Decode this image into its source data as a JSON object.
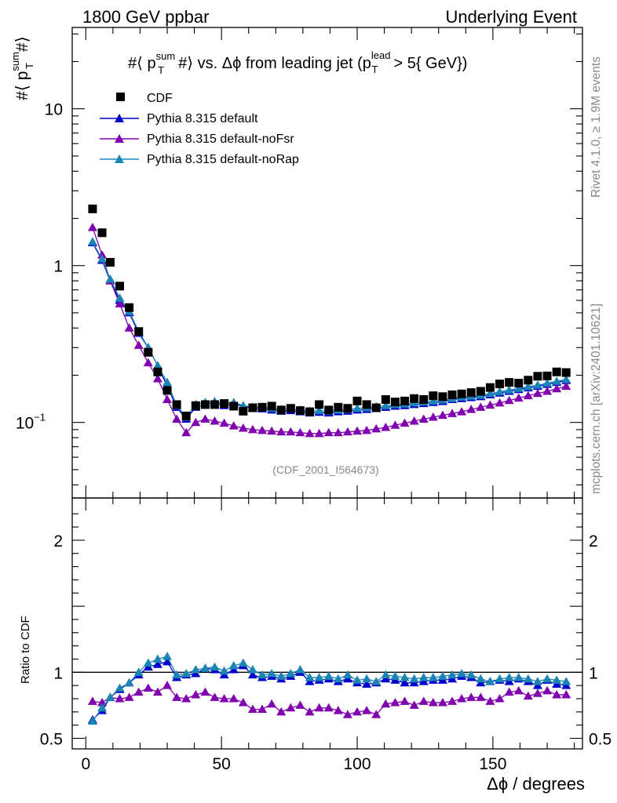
{
  "header": {
    "left": "1800 GeV ppbar",
    "right": "Underlying Event"
  },
  "side_text": {
    "rivet": "Rivet 4.1.0, ≥ 1.9M events",
    "mcplots": "mcplots.cern.ch [arXiv:2401.10621]"
  },
  "watermark": "(CDF_2001_I564673)",
  "chart_data": [
    {
      "type": "scatter",
      "panel": "main",
      "title": "#⟨ p_T^sum #⟩ vs. Δϕ from leading jet  (p_T^lead > 5{ GeV})",
      "title_parts": {
        "a": "#⟨ p",
        "sup1": "sum",
        "sub1": "T",
        "b": "#⟩ vs. Δϕ from leading jet  (p",
        "sup2": "lead",
        "sub2": "T",
        "c": "> 5{ GeV})"
      },
      "ylabel": "#⟨ p_T^sum #⟩",
      "ylabel_parts": {
        "a": "#⟨ p",
        "sup": "sum",
        "sub": "T",
        "b": "#⟩"
      },
      "yscale": "log",
      "ylim": [
        0.033,
        33
      ],
      "xlim": [
        -5,
        183
      ],
      "yticks": [
        {
          "value": 10,
          "label": "10"
        },
        {
          "value": 1,
          "label": "1"
        },
        {
          "value": 0.1,
          "label": "10",
          "exp": "−1"
        }
      ],
      "legend_position": "top-left",
      "x": [
        2.5,
        6.0,
        9.0,
        12.5,
        16.0,
        19.5,
        23.0,
        26.5,
        30.0,
        33.5,
        37.0,
        40.5,
        44.0,
        47.5,
        51.0,
        54.5,
        58.0,
        61.5,
        65.0,
        68.5,
        72.0,
        75.5,
        79.0,
        82.5,
        86.0,
        89.5,
        93.0,
        96.5,
        100.0,
        103.5,
        107.0,
        110.5,
        114.0,
        117.5,
        121.0,
        124.5,
        128.0,
        131.5,
        135.0,
        138.5,
        142.0,
        145.5,
        149.0,
        152.5,
        156.0,
        159.5,
        163.0,
        166.5,
        170.0,
        173.5,
        177.0
      ],
      "series": [
        {
          "name": "CDF",
          "color": "#000000",
          "marker": "square",
          "values": [
            2.3,
            1.62,
            1.05,
            0.74,
            0.54,
            0.38,
            0.28,
            0.21,
            0.16,
            0.13,
            0.11,
            0.128,
            0.13,
            0.13,
            0.132,
            0.127,
            0.118,
            0.124,
            0.125,
            0.127,
            0.12,
            0.123,
            0.119,
            0.117,
            0.13,
            0.12,
            0.125,
            0.123,
            0.137,
            0.13,
            0.124,
            0.14,
            0.135,
            0.137,
            0.142,
            0.14,
            0.148,
            0.146,
            0.15,
            0.152,
            0.155,
            0.158,
            0.167,
            0.176,
            0.18,
            0.178,
            0.186,
            0.197,
            0.198,
            0.21,
            0.208
          ]
        },
        {
          "name": "Pythia 8.315 default",
          "color": "#0000cc",
          "marker": "triangle",
          "values": [
            1.4,
            1.08,
            0.8,
            0.6,
            0.5,
            0.37,
            0.3,
            0.23,
            0.17,
            0.125,
            0.105,
            0.125,
            0.13,
            0.134,
            0.128,
            0.131,
            0.127,
            0.123,
            0.122,
            0.12,
            0.118,
            0.119,
            0.117,
            0.115,
            0.116,
            0.115,
            0.117,
            0.118,
            0.12,
            0.121,
            0.123,
            0.125,
            0.127,
            0.128,
            0.13,
            0.132,
            0.134,
            0.136,
            0.14,
            0.142,
            0.144,
            0.146,
            0.15,
            0.154,
            0.158,
            0.162,
            0.166,
            0.17,
            0.175,
            0.18,
            0.185
          ]
        },
        {
          "name": "Pythia 8.315 default-noFsr",
          "color": "#8000b0",
          "marker": "triangle",
          "values": [
            1.75,
            1.17,
            0.8,
            0.57,
            0.4,
            0.31,
            0.24,
            0.19,
            0.14,
            0.105,
            0.086,
            0.1,
            0.105,
            0.102,
            0.099,
            0.095,
            0.092,
            0.09,
            0.089,
            0.088,
            0.087,
            0.087,
            0.086,
            0.085,
            0.085,
            0.086,
            0.086,
            0.087,
            0.088,
            0.089,
            0.091,
            0.093,
            0.096,
            0.099,
            0.102,
            0.105,
            0.108,
            0.111,
            0.114,
            0.117,
            0.121,
            0.125,
            0.129,
            0.133,
            0.138,
            0.143,
            0.148,
            0.153,
            0.158,
            0.164,
            0.17
          ]
        },
        {
          "name": "Pythia 8.315 default-noRap",
          "color": "#1a85b5",
          "marker": "triangle",
          "values": [
            1.42,
            1.1,
            0.82,
            0.62,
            0.51,
            0.38,
            0.3,
            0.23,
            0.18,
            0.128,
            0.108,
            0.13,
            0.134,
            0.136,
            0.132,
            0.134,
            0.128,
            0.125,
            0.125,
            0.123,
            0.121,
            0.122,
            0.12,
            0.118,
            0.119,
            0.118,
            0.12,
            0.121,
            0.123,
            0.124,
            0.126,
            0.128,
            0.13,
            0.131,
            0.133,
            0.135,
            0.137,
            0.139,
            0.142,
            0.145,
            0.147,
            0.149,
            0.153,
            0.157,
            0.161,
            0.165,
            0.169,
            0.173,
            0.178,
            0.183,
            0.188
          ]
        }
      ]
    },
    {
      "type": "line",
      "panel": "ratio",
      "ylabel": "Ratio to CDF",
      "xlabel": "Δϕ / degrees",
      "xlim": [
        -5,
        183
      ],
      "ylim": [
        0.42,
        2.32
      ],
      "reference_line": 1,
      "xticks": [
        {
          "value": 0,
          "label": "0"
        },
        {
          "value": 50,
          "label": "50"
        },
        {
          "value": 100,
          "label": "100"
        },
        {
          "value": 150,
          "label": "150"
        }
      ],
      "yticks": [
        {
          "value": 0.5,
          "label": "0.5"
        },
        {
          "value": 1,
          "label": "1"
        },
        {
          "value": 2,
          "label": "2"
        }
      ],
      "x": [
        2.5,
        6.0,
        9.0,
        12.5,
        16.0,
        19.5,
        23.0,
        26.5,
        30.0,
        33.5,
        37.0,
        40.5,
        44.0,
        47.5,
        51.0,
        54.5,
        58.0,
        61.5,
        65.0,
        68.5,
        72.0,
        75.5,
        79.0,
        82.5,
        86.0,
        89.5,
        93.0,
        96.5,
        100.0,
        103.5,
        107.0,
        110.5,
        114.0,
        117.5,
        121.0,
        124.5,
        128.0,
        131.5,
        135.0,
        138.5,
        142.0,
        145.5,
        149.0,
        152.5,
        156.0,
        159.5,
        163.0,
        166.5,
        170.0,
        173.5,
        177.0
      ],
      "series": [
        {
          "name": "Pythia 8.315 default",
          "color": "#0000cc",
          "values": [
            0.64,
            0.71,
            0.81,
            0.87,
            0.92,
            0.98,
            1.04,
            1.06,
            1.08,
            0.96,
            0.98,
            0.99,
            1.03,
            1.02,
            0.98,
            1.02,
            1.05,
            0.98,
            0.96,
            0.97,
            0.95,
            0.97,
            1.0,
            0.93,
            0.94,
            0.95,
            0.93,
            0.95,
            0.92,
            0.91,
            0.92,
            0.95,
            0.94,
            0.92,
            0.92,
            0.93,
            0.94,
            0.94,
            0.95,
            0.97,
            0.96,
            0.92,
            0.93,
            0.94,
            0.93,
            0.95,
            0.93,
            0.9,
            0.94,
            0.91,
            0.9
          ]
        },
        {
          "name": "Pythia 8.315 default-noFsr",
          "color": "#8000b0",
          "values": [
            0.78,
            0.77,
            0.81,
            0.8,
            0.81,
            0.85,
            0.88,
            0.85,
            0.9,
            0.81,
            0.8,
            0.83,
            0.85,
            0.81,
            0.8,
            0.8,
            0.77,
            0.72,
            0.72,
            0.76,
            0.7,
            0.73,
            0.75,
            0.7,
            0.73,
            0.73,
            0.71,
            0.68,
            0.7,
            0.71,
            0.68,
            0.76,
            0.77,
            0.78,
            0.75,
            0.78,
            0.77,
            0.77,
            0.78,
            0.8,
            0.81,
            0.81,
            0.78,
            0.8,
            0.85,
            0.86,
            0.82,
            0.84,
            0.86,
            0.83,
            0.83
          ]
        },
        {
          "name": "Pythia 8.315 default-noRap",
          "color": "#1a85b5",
          "values": [
            0.63,
            0.73,
            0.81,
            0.88,
            0.92,
            1.0,
            1.07,
            1.1,
            1.12,
            0.98,
            0.99,
            1.02,
            1.03,
            1.04,
            1.01,
            1.05,
            1.07,
            1.02,
            0.98,
            0.99,
            0.97,
            0.99,
            1.02,
            0.96,
            0.96,
            0.97,
            0.95,
            0.98,
            0.94,
            0.95,
            0.93,
            0.98,
            0.97,
            0.96,
            0.95,
            0.96,
            0.96,
            0.97,
            0.98,
            0.99,
            0.98,
            0.95,
            0.93,
            0.95,
            0.96,
            0.96,
            0.95,
            0.93,
            0.95,
            0.94,
            0.93
          ]
        }
      ]
    }
  ]
}
